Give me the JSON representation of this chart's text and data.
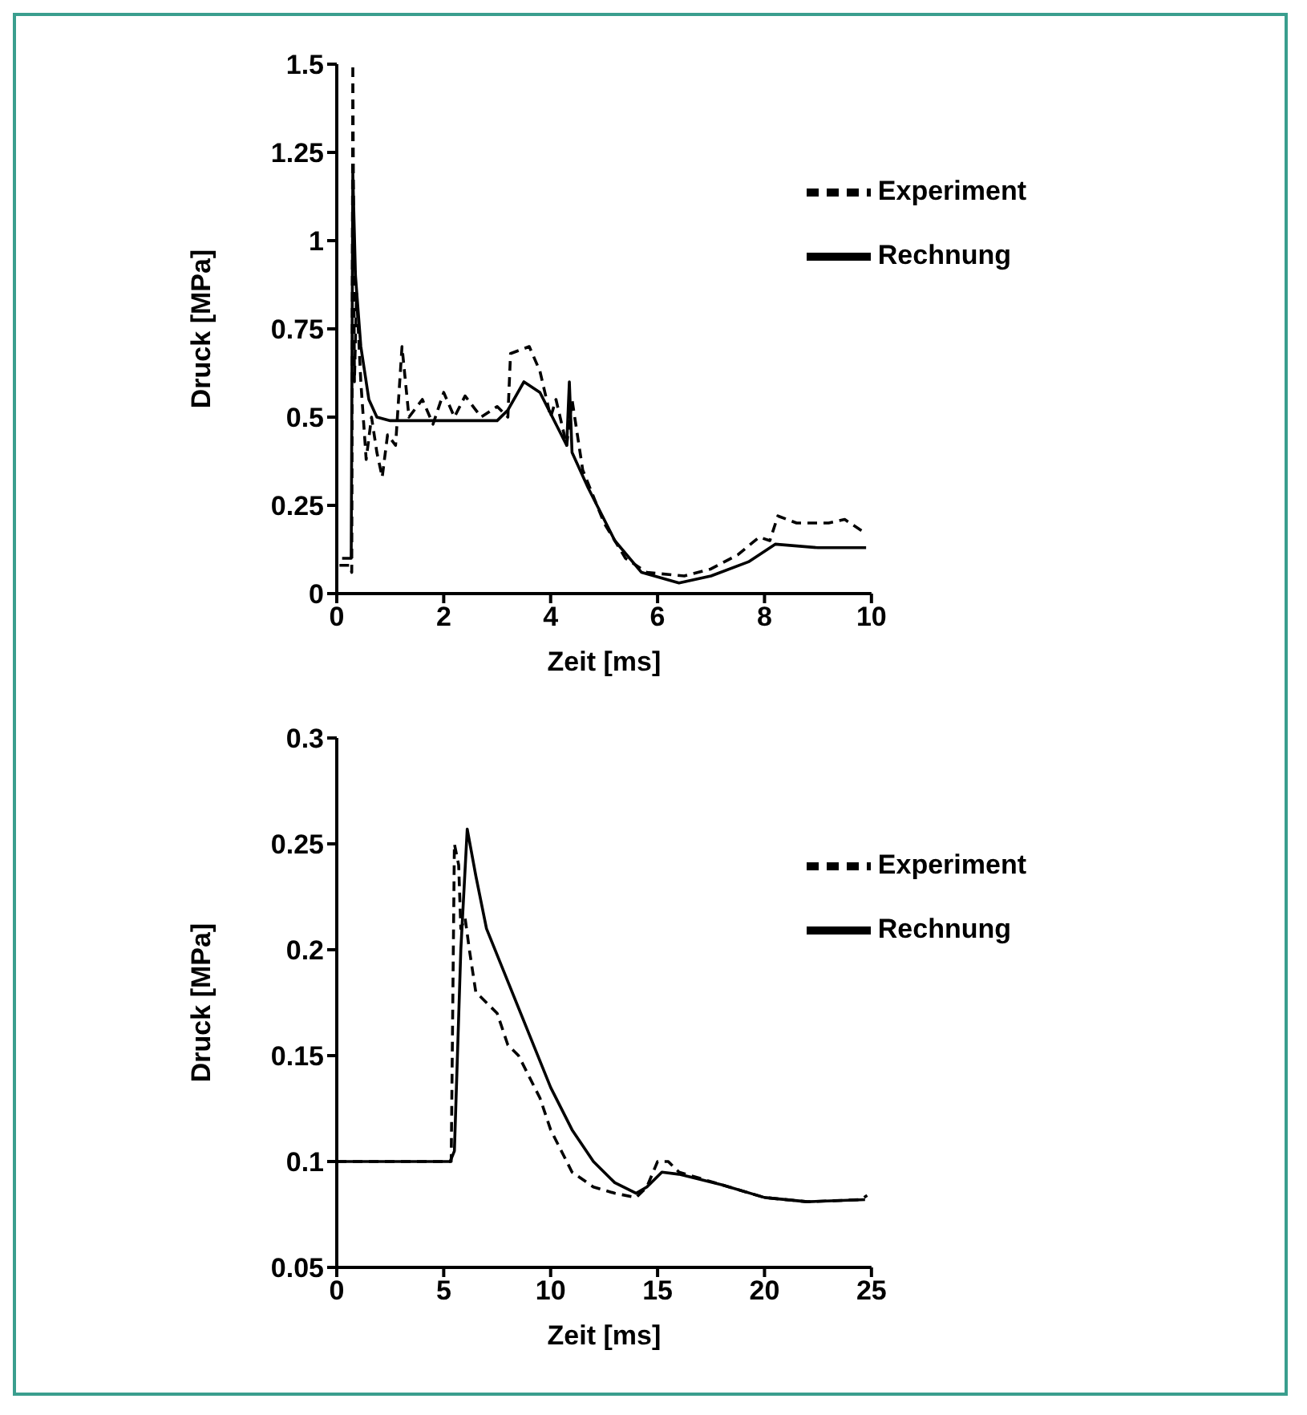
{
  "chart_data": [
    {
      "type": "line",
      "xlabel": "Zeit [ms]",
      "ylabel": "Druck [MPa]",
      "xlim": [
        0,
        10
      ],
      "xticks": [
        0,
        2,
        4,
        6,
        8,
        10
      ],
      "ylim": [
        0,
        1.5
      ],
      "yticks": [
        0,
        0.25,
        0.5,
        0.75,
        1,
        1.25,
        1.5
      ],
      "grid": false,
      "legend": "top right",
      "series": [
        {
          "name": "Rechnung",
          "color": "#000000",
          "line_style": "solid",
          "x": [
            0.1,
            0.27,
            0.3,
            0.35,
            0.45,
            0.6,
            0.75,
            1.0,
            1.5,
            2.0,
            2.5,
            3.0,
            3.2,
            3.5,
            3.8,
            4.2,
            4.3,
            4.35,
            4.4,
            4.7,
            5.2,
            5.7,
            6.4,
            7.0,
            7.7,
            8.2,
            9.0,
            9.9
          ],
          "values": [
            0.1,
            0.1,
            1.19,
            0.9,
            0.7,
            0.55,
            0.5,
            0.49,
            0.49,
            0.49,
            0.49,
            0.49,
            0.52,
            0.6,
            0.57,
            0.45,
            0.42,
            0.6,
            0.4,
            0.3,
            0.15,
            0.06,
            0.03,
            0.05,
            0.09,
            0.14,
            0.13,
            0.13
          ]
        },
        {
          "name": "Experiment",
          "color": "#000000",
          "line_style": "dashed",
          "x": [
            0.05,
            0.25,
            0.28,
            0.3,
            0.33,
            0.37,
            0.45,
            0.55,
            0.65,
            0.75,
            0.85,
            0.95,
            1.1,
            1.22,
            1.35,
            1.6,
            1.8,
            2.0,
            2.2,
            2.4,
            2.7,
            3.0,
            3.2,
            3.25,
            3.6,
            3.8,
            4.0,
            4.1,
            4.3,
            4.4,
            4.6,
            5.0,
            5.4,
            5.8,
            6.5,
            7.0,
            7.5,
            7.9,
            8.1,
            8.25,
            8.6,
            9.2,
            9.5,
            9.9
          ],
          "values": [
            0.08,
            0.08,
            0.06,
            1.5,
            0.6,
            0.85,
            0.6,
            0.38,
            0.5,
            0.4,
            0.33,
            0.45,
            0.42,
            0.7,
            0.5,
            0.55,
            0.48,
            0.57,
            0.5,
            0.56,
            0.5,
            0.53,
            0.5,
            0.68,
            0.7,
            0.63,
            0.5,
            0.55,
            0.42,
            0.55,
            0.35,
            0.2,
            0.1,
            0.06,
            0.05,
            0.07,
            0.11,
            0.16,
            0.15,
            0.22,
            0.2,
            0.2,
            0.21,
            0.17
          ]
        }
      ]
    },
    {
      "type": "line",
      "xlabel": "Zeit [ms]",
      "ylabel": "Druck [MPa]",
      "xlim": [
        0,
        25
      ],
      "xticks": [
        0,
        5,
        10,
        15,
        20,
        25
      ],
      "ylim": [
        0.05,
        0.3
      ],
      "yticks": [
        0.05,
        0.1,
        0.15,
        0.2,
        0.25,
        0.3
      ],
      "grid": false,
      "legend": "top right",
      "series": [
        {
          "name": "Rechnung",
          "color": "#000000",
          "line_style": "solid",
          "x": [
            0,
            5.3,
            5.5,
            5.8,
            6.1,
            6.5,
            7,
            8,
            9,
            10,
            11,
            12,
            13,
            14,
            14.5,
            15.2,
            16,
            18,
            20,
            22,
            24.7
          ],
          "values": [
            0.1,
            0.1,
            0.105,
            0.2,
            0.257,
            0.235,
            0.21,
            0.185,
            0.16,
            0.135,
            0.115,
            0.1,
            0.09,
            0.085,
            0.088,
            0.095,
            0.094,
            0.089,
            0.083,
            0.081,
            0.082
          ]
        },
        {
          "name": "Experiment",
          "color": "#000000",
          "line_style": "dashed",
          "x": [
            0,
            5.35,
            5.5,
            5.7,
            5.8,
            6.0,
            6.2,
            6.5,
            7,
            7.5,
            8,
            8.5,
            9,
            9.5,
            10,
            11,
            12,
            13,
            14,
            14.5,
            15,
            15.5,
            16,
            18,
            20,
            22,
            24.5,
            24.8
          ],
          "values": [
            0.1,
            0.1,
            0.25,
            0.24,
            0.21,
            0.215,
            0.2,
            0.18,
            0.175,
            0.17,
            0.155,
            0.15,
            0.14,
            0.13,
            0.115,
            0.095,
            0.088,
            0.085,
            0.083,
            0.088,
            0.1,
            0.1,
            0.095,
            0.089,
            0.083,
            0.081,
            0.082,
            0.084
          ]
        }
      ]
    }
  ]
}
